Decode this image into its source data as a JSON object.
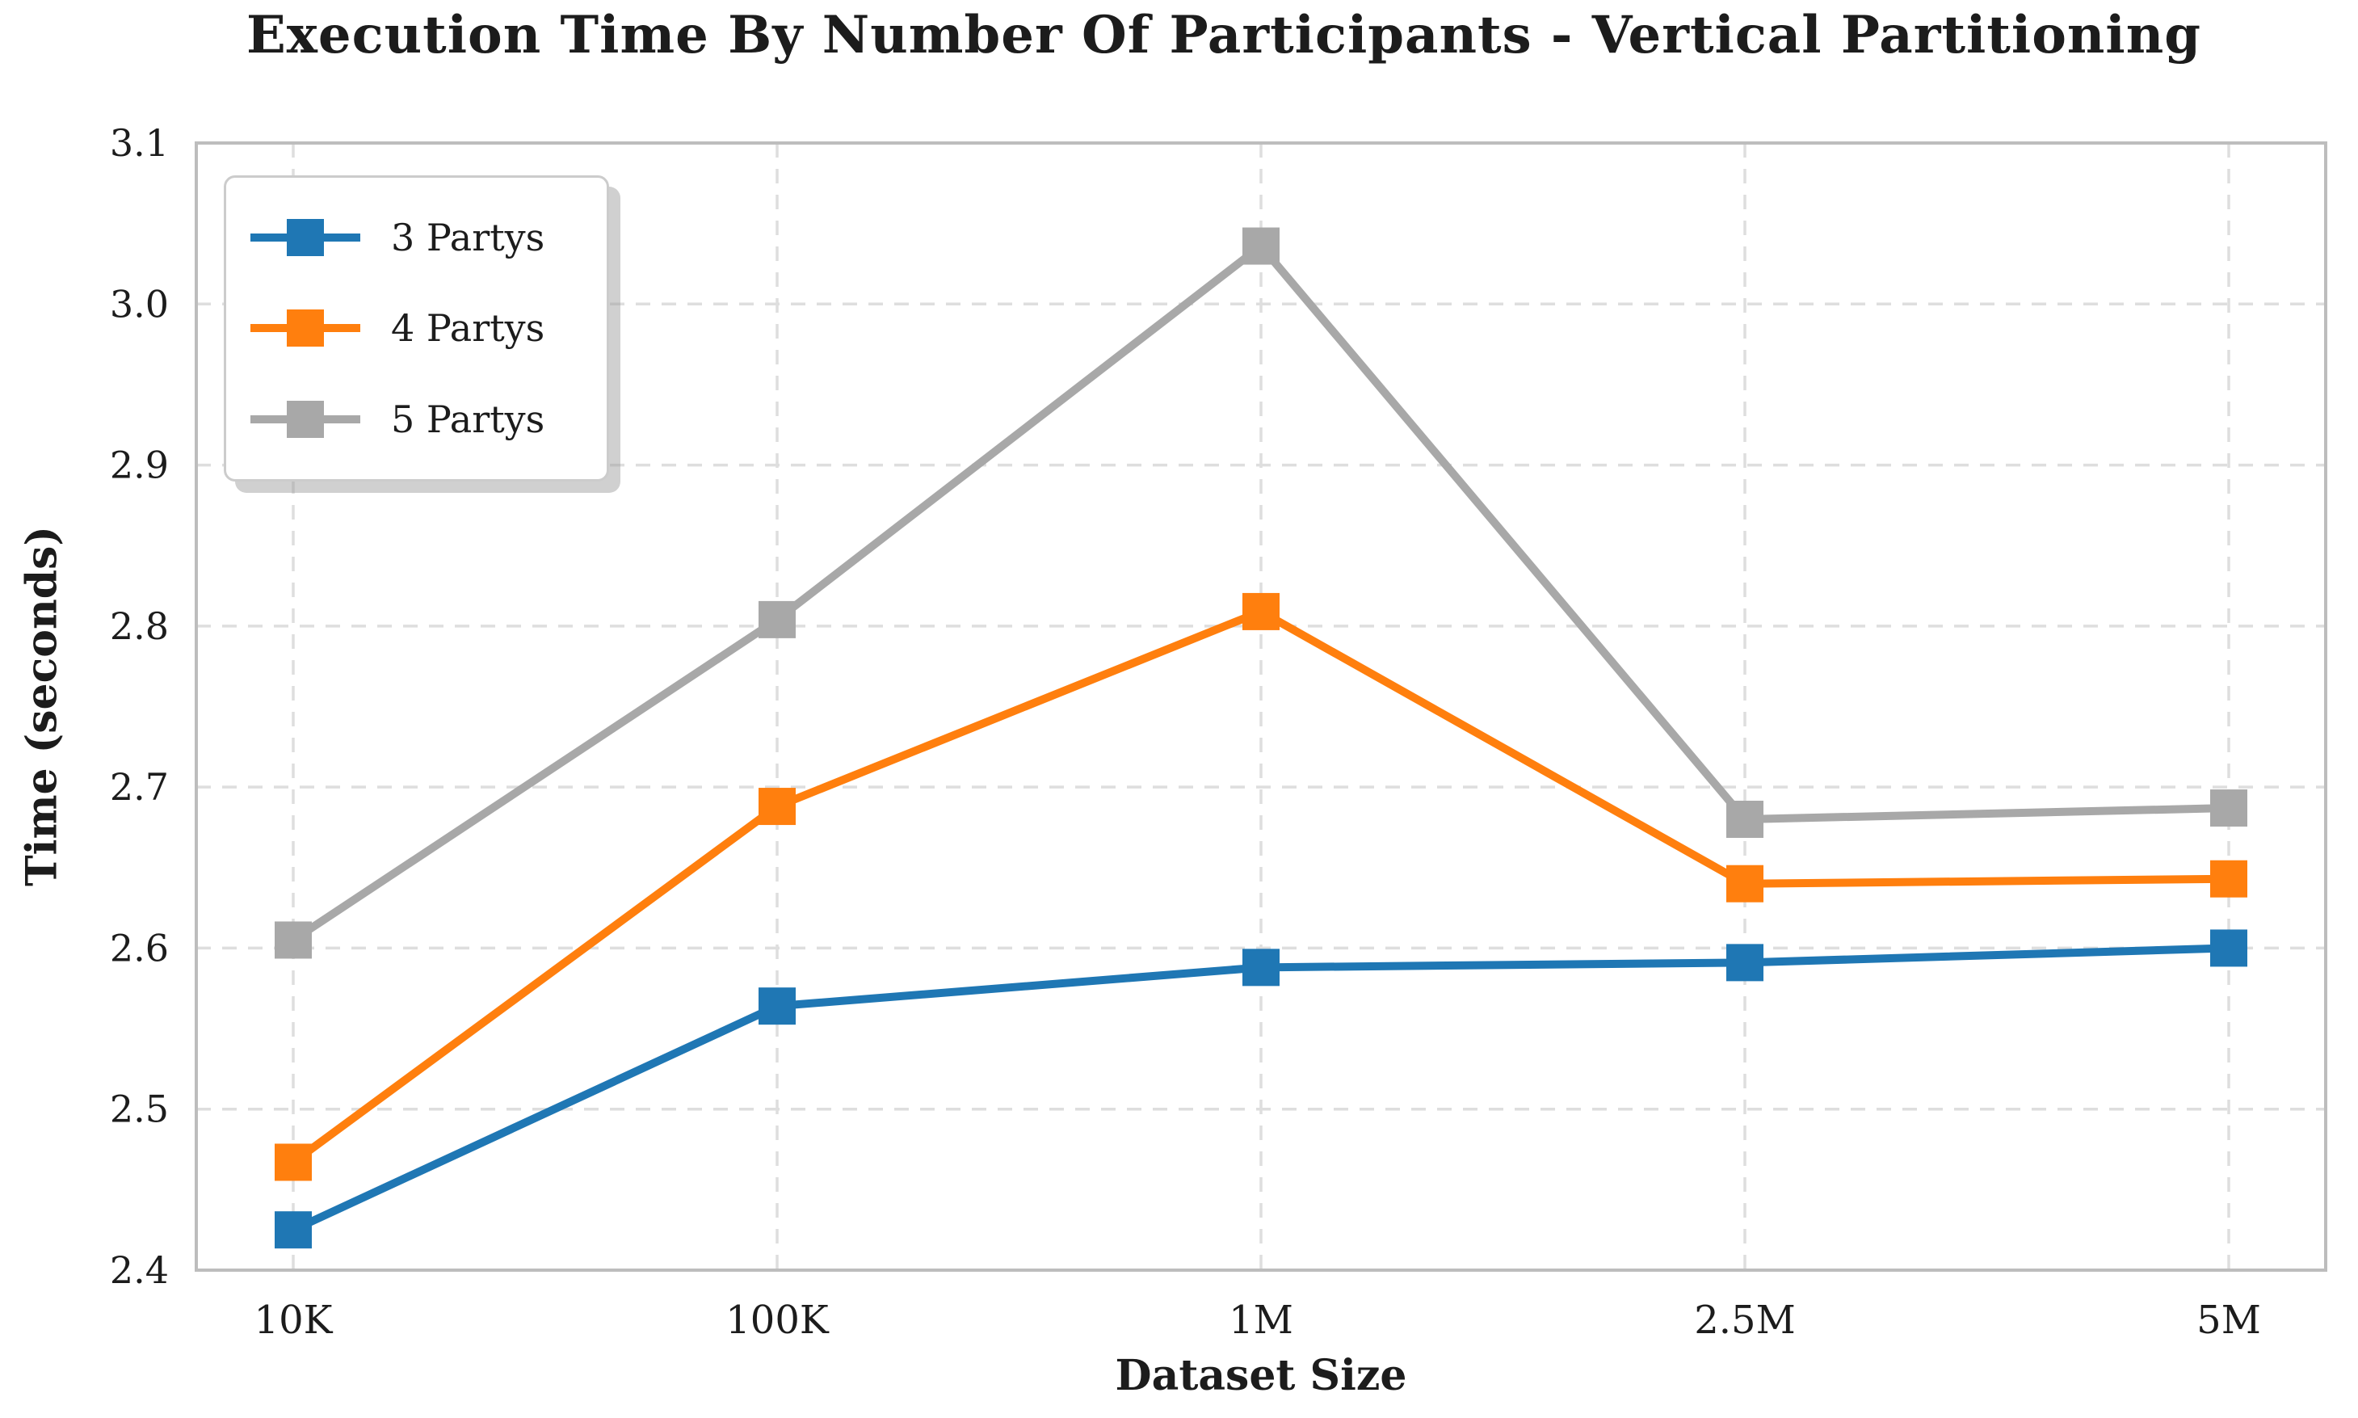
{
  "page": {
    "background": "#ffffff",
    "text_color": "#1c1c1c",
    "grid_color": "#dedede",
    "spine_color": "#bdbdbd"
  },
  "chart_data": {
    "type": "line",
    "title": "Execution Time By Number Of Participants - Vertical Partitioning",
    "xlabel": "Dataset Size",
    "ylabel": "Time (seconds)",
    "categories": [
      "10K",
      "100K",
      "1M",
      "2.5M",
      "5M"
    ],
    "series": [
      {
        "name": "3 Partys",
        "color": "#1f77b4",
        "marker": "square",
        "values": [
          2.425,
          2.564,
          2.588,
          2.591,
          2.6
        ]
      },
      {
        "name": "4 Partys",
        "color": "#ff7f0e",
        "marker": "square",
        "values": [
          2.467,
          2.688,
          2.809,
          2.64,
          2.643
        ]
      },
      {
        "name": "5 Partys",
        "color": "#a8a8a8",
        "marker": "square",
        "values": [
          2.605,
          2.804,
          3.036,
          2.68,
          2.687
        ]
      }
    ],
    "ylim": [
      2.4,
      3.1
    ],
    "ytick_step": 0.1,
    "ytick_labels": [
      "2.4",
      "2.5",
      "2.6",
      "2.7",
      "2.8",
      "2.9",
      "3.0",
      "3.1"
    ],
    "grid": "dashed-both-axes",
    "legend_position": "upper-left",
    "legend_labels": [
      "3 Partys",
      "4 Partys",
      "5 Partys"
    ]
  }
}
